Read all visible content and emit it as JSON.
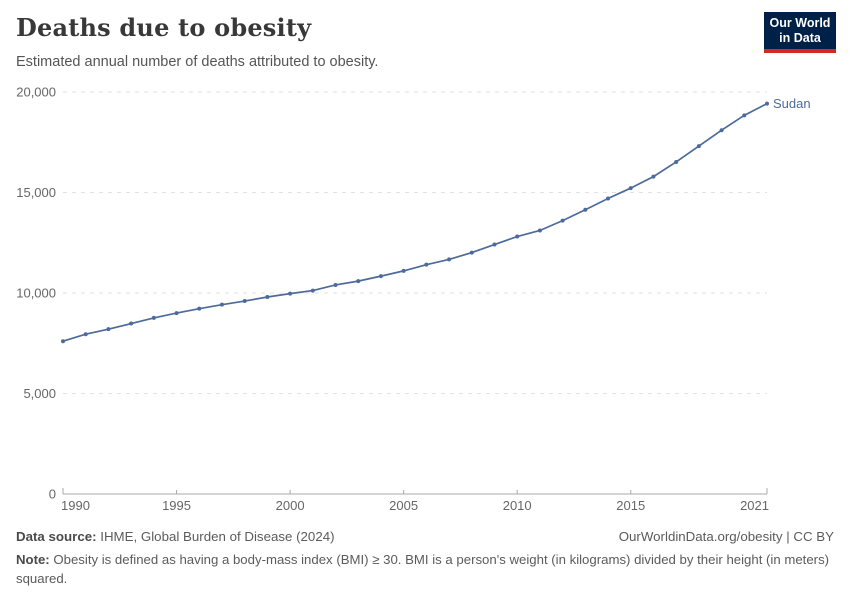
{
  "header": {
    "title": "Deaths due to obesity",
    "subtitle": "Estimated annual number of deaths attributed to obesity.",
    "logo": {
      "line1": "Our World",
      "line2": "in Data",
      "bg_color": "#002147",
      "accent_color": "#D42B21"
    }
  },
  "chart_data": {
    "type": "line",
    "title": "Deaths due to obesity",
    "subtitle": "Estimated annual number of deaths attributed to obesity.",
    "x": [
      1990,
      1991,
      1992,
      1993,
      1994,
      1995,
      1996,
      1997,
      1998,
      1999,
      2000,
      2001,
      2002,
      2003,
      2004,
      2005,
      2006,
      2007,
      2008,
      2009,
      2010,
      2011,
      2012,
      2013,
      2014,
      2015,
      2016,
      2017,
      2018,
      2019,
      2020,
      2021
    ],
    "series": [
      {
        "name": "Sudan",
        "color": "#4C6A9C",
        "values": [
          7600,
          7950,
          8200,
          8480,
          8760,
          9000,
          9220,
          9420,
          9600,
          9800,
          9970,
          10120,
          10400,
          10590,
          10840,
          11100,
          11410,
          11670,
          12010,
          12410,
          12810,
          13110,
          13600,
          14140,
          14700,
          15220,
          15790,
          16520,
          17310,
          18100,
          18840,
          19420
        ]
      }
    ],
    "x_ticks": [
      1990,
      1995,
      2000,
      2005,
      2010,
      2015,
      2021
    ],
    "y_ticks": [
      0,
      5000,
      10000,
      15000,
      20000
    ],
    "xlim": [
      1990,
      2021
    ],
    "ylim": [
      0,
      20000
    ],
    "grid": "horizontal-dashed",
    "legend_position": "end-of-line-label",
    "xlabel": "",
    "ylabel": ""
  },
  "footer": {
    "datasource_label": "Data source:",
    "datasource_value": " IHME, Global Burden of Disease (2024)",
    "link": "OurWorldinData.org/obesity | CC BY",
    "note_label": "Note:",
    "note_value": " Obesity is defined as having a body-mass index (BMI) ≥ 30. BMI is a person's weight (in kilograms) divided by their height (in meters) squared."
  }
}
